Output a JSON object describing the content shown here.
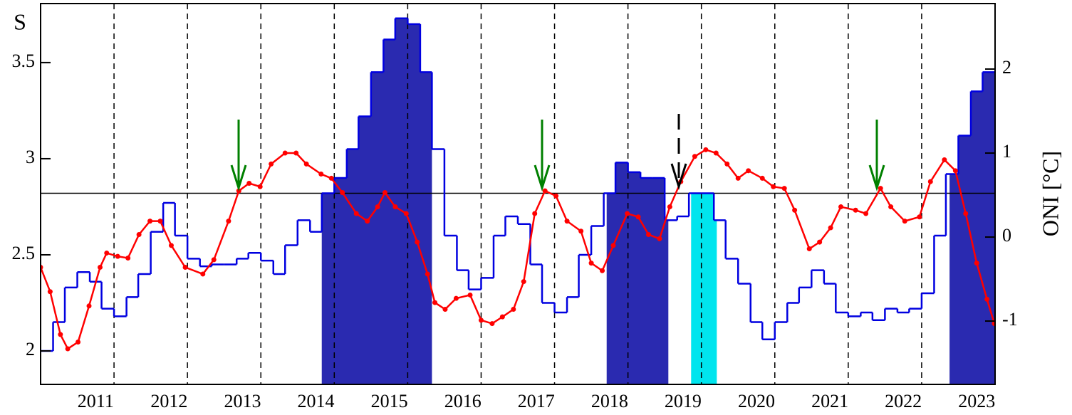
{
  "chart_data": {
    "type": "step",
    "ylabel": "S",
    "y2label": "ONI [°C]",
    "xlim": [
      2011,
      2024
    ],
    "ylim": [
      1.826,
      3.807
    ],
    "y2lim": [
      -1.754,
      2.78
    ],
    "yticks": [
      2,
      2.5,
      3,
      3.5
    ],
    "y2ticks": [
      -1,
      0,
      1,
      2
    ],
    "xticks": [
      {
        "value": 2011.75,
        "label": "2011"
      },
      {
        "value": 2012.75,
        "label": "2012"
      },
      {
        "value": 2013.75,
        "label": "2013"
      },
      {
        "value": 2014.75,
        "label": "2014"
      },
      {
        "value": 2015.75,
        "label": "2015"
      },
      {
        "value": 2016.75,
        "label": "2016"
      },
      {
        "value": 2017.75,
        "label": "2017"
      },
      {
        "value": 2018.75,
        "label": "2018"
      },
      {
        "value": 2019.75,
        "label": "2019"
      },
      {
        "value": 2020.75,
        "label": "2020"
      },
      {
        "value": 2021.75,
        "label": "2021"
      },
      {
        "value": 2022.75,
        "label": "2022"
      },
      {
        "value": 2023.75,
        "label": "2023"
      }
    ],
    "vlines": [
      2012,
      2013,
      2014,
      2015,
      2016,
      2017,
      2018,
      2019,
      2020,
      2021,
      2022,
      2023
    ],
    "threshold": 2.82,
    "shaded": [
      {
        "start": 2014.83,
        "end": 2016.33,
        "color": "#2a2ab0"
      },
      {
        "start": 2018.71,
        "end": 2019.55,
        "color": "#2a2ab0"
      },
      {
        "start": 2019.86,
        "end": 2020.21,
        "color": "#00e5ee"
      },
      {
        "start": 2023.38,
        "end": 2024,
        "color": "#2a2ab0"
      }
    ],
    "series": [
      {
        "color": "#0000e0",
        "bins": [
          2011,
          2011.17,
          2011.33,
          2011.5,
          2011.67,
          2011.83,
          2012,
          2012.17,
          2012.33,
          2012.5,
          2012.67,
          2012.83,
          2013,
          2013.17,
          2013.33,
          2013.5,
          2013.67,
          2013.83,
          2014,
          2014.17,
          2014.33,
          2014.5,
          2014.67,
          2014.83,
          2015,
          2015.17,
          2015.33,
          2015.5,
          2015.67,
          2015.83,
          2016,
          2016.17,
          2016.33,
          2016.5,
          2016.67,
          2016.83,
          2017,
          2017.17,
          2017.33,
          2017.5,
          2017.67,
          2017.83,
          2018,
          2018.17,
          2018.33,
          2018.5,
          2018.67,
          2018.83,
          2019,
          2019.17,
          2019.33,
          2019.5,
          2019.67,
          2019.83,
          2020,
          2020.17,
          2020.33,
          2020.5,
          2020.67,
          2020.83,
          2021,
          2021.17,
          2021.33,
          2021.5,
          2021.67,
          2021.83,
          2022,
          2022.17,
          2022.33,
          2022.5,
          2022.67,
          2022.83,
          2023,
          2023.17,
          2023.33,
          2023.5,
          2023.67,
          2023.83,
          2024
        ],
        "values": [
          2.0,
          2.15,
          2.33,
          2.41,
          2.36,
          2.22,
          2.18,
          2.28,
          2.4,
          2.62,
          2.77,
          2.6,
          2.48,
          2.44,
          2.45,
          2.45,
          2.48,
          2.51,
          2.47,
          2.4,
          2.55,
          2.68,
          2.62,
          2.82,
          2.9,
          3.05,
          3.22,
          3.45,
          3.62,
          3.73,
          3.7,
          3.45,
          3.05,
          2.6,
          2.42,
          2.32,
          2.38,
          2.6,
          2.7,
          2.66,
          2.45,
          2.25,
          2.2,
          2.28,
          2.5,
          2.65,
          2.82,
          2.98,
          2.93,
          2.9,
          2.9,
          2.68,
          2.7,
          2.82,
          2.82,
          2.68,
          2.48,
          2.35,
          2.15,
          2.06,
          2.15,
          2.25,
          2.33,
          2.42,
          2.35,
          2.2,
          2.18,
          2.2,
          2.16,
          2.22,
          2.2,
          2.22,
          2.3,
          2.6,
          2.92,
          3.12,
          3.35,
          3.45
        ]
      },
      {
        "color": "#ff0000",
        "axis": "y2",
        "x": [
          2011.0,
          2011.13,
          2011.27,
          2011.37,
          2011.51,
          2011.66,
          2011.81,
          2011.9,
          2012.05,
          2012.19,
          2012.34,
          2012.49,
          2012.63,
          2012.78,
          2012.97,
          2013.21,
          2013.36,
          2013.56,
          2013.7,
          2013.84,
          2013.99,
          2014.14,
          2014.33,
          2014.48,
          2014.62,
          2014.82,
          2014.96,
          2015.11,
          2015.3,
          2015.45,
          2015.59,
          2015.69,
          2015.83,
          2015.98,
          2016.13,
          2016.27,
          2016.37,
          2016.51,
          2016.66,
          2016.85,
          2017.0,
          2017.15,
          2017.29,
          2017.44,
          2017.58,
          2017.73,
          2017.87,
          2018.02,
          2018.17,
          2018.36,
          2018.5,
          2018.65,
          2018.8,
          2018.99,
          2019.14,
          2019.28,
          2019.43,
          2019.57,
          2019.72,
          2019.91,
          2020.06,
          2020.2,
          2020.35,
          2020.5,
          2020.64,
          2020.83,
          2020.98,
          2021.13,
          2021.27,
          2021.47,
          2021.61,
          2021.76,
          2021.9,
          2022.1,
          2022.24,
          2022.44,
          2022.58,
          2022.77,
          2022.97,
          2023.12,
          2023.31,
          2023.46,
          2023.6,
          2023.75,
          2023.89,
          2023.99
        ],
        "values": [
          -0.36,
          -0.65,
          -1.16,
          -1.33,
          -1.25,
          -0.82,
          -0.36,
          -0.19,
          -0.23,
          -0.25,
          0.03,
          0.19,
          0.19,
          -0.1,
          -0.36,
          -0.44,
          -0.27,
          0.19,
          0.55,
          0.64,
          0.6,
          0.87,
          1.0,
          1.0,
          0.87,
          0.75,
          0.7,
          0.53,
          0.28,
          0.19,
          0.36,
          0.53,
          0.36,
          0.28,
          -0.06,
          -0.44,
          -0.78,
          -0.86,
          -0.73,
          -0.69,
          -0.99,
          -1.03,
          -0.95,
          -0.86,
          -0.53,
          0.28,
          0.55,
          0.49,
          0.19,
          0.07,
          -0.31,
          -0.4,
          -0.1,
          0.28,
          0.24,
          0.03,
          -0.02,
          0.36,
          0.66,
          0.96,
          1.04,
          1.0,
          0.87,
          0.7,
          0.79,
          0.7,
          0.6,
          0.58,
          0.32,
          -0.14,
          -0.06,
          0.11,
          0.36,
          0.32,
          0.28,
          0.58,
          0.36,
          0.19,
          0.24,
          0.66,
          0.92,
          0.79,
          0.28,
          -0.31,
          -0.74,
          -1.03
        ]
      }
    ]
  }
}
